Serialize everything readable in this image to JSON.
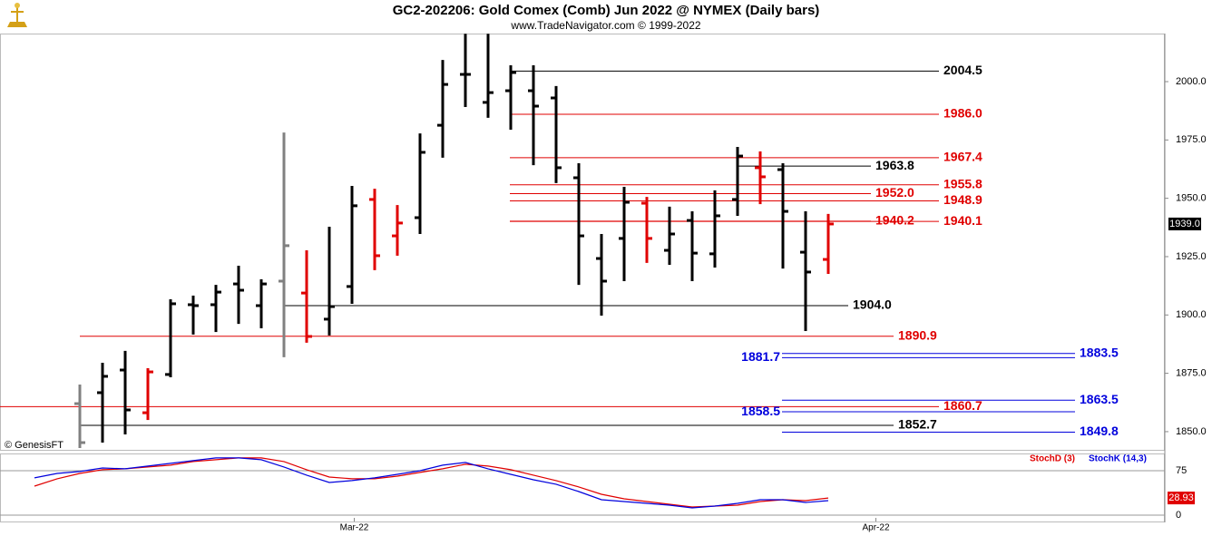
{
  "chart_data": [
    {
      "type": "ohlc",
      "title": "GC2-202206:  Gold Comex (Comb) Jun 2022 @ NYMEX  (Daily bars)",
      "subtitle": "www.TradeNavigator.com © 1999-2022",
      "watermark": "© GenesisFT",
      "x": [
        0,
        1,
        2,
        3,
        4,
        5,
        6,
        7,
        8,
        9,
        10,
        11,
        12,
        13,
        14,
        15,
        16,
        17,
        18,
        19,
        20,
        21,
        22,
        23,
        24,
        25,
        26,
        27,
        28,
        29,
        30,
        31,
        32,
        33
      ],
      "open": [
        1862.0,
        1866.7,
        1876.4,
        1858.1,
        1874.5,
        1904.4,
        1904.4,
        1913.3,
        1904.0,
        1914.5,
        1909.4,
        1898.2,
        1912.2,
        1949.5,
        1933.9,
        1941.7,
        1981.3,
        2003.1,
        1991.1,
        1996.1,
        1996.1,
        1993.0,
        1958.8,
        1924.2,
        1932.8,
        1947.9,
        1927.7,
        1940.5,
        1926.2,
        1949.5,
        1963.1,
        1962.3,
        1926.9,
        1923.8
      ],
      "high": [
        1870.2,
        1879.5,
        1884.6,
        1877.2,
        1906.7,
        1908.3,
        1912.9,
        1921.1,
        1915.3,
        1978.2,
        1927.7,
        1937.8,
        1955.3,
        1954.1,
        1947.1,
        1977.8,
        2009.3,
        2020.5,
        2020.5,
        2007.0,
        2007.0,
        1998.1,
        1965.0,
        1934.7,
        1954.9,
        1950.6,
        1946.4,
        1944.4,
        1953.4,
        1972.0,
        1970.1,
        1965.0,
        1944.4,
        1943.3
      ],
      "low": [
        1843.0,
        1845.3,
        1848.8,
        1855.0,
        1873.3,
        1891.6,
        1892.7,
        1896.2,
        1894.3,
        1881.9,
        1888.1,
        1891.2,
        1904.8,
        1919.2,
        1925.4,
        1934.7,
        1967.4,
        1989.1,
        1984.5,
        1979.4,
        1964.2,
        1956.5,
        1912.9,
        1899.7,
        1914.5,
        1922.3,
        1921.5,
        1914.5,
        1920.3,
        1942.5,
        1947.5,
        1919.9,
        1893.1,
        1917.6
      ],
      "close": [
        1845.3,
        1873.7,
        1859.3,
        1875.6,
        1904.8,
        1904.0,
        1909.8,
        1910.6,
        1913.3,
        1929.7,
        1890.8,
        1903.6,
        1946.8,
        1925.4,
        1939.4,
        1969.7,
        1998.8,
        2003.1,
        1995.3,
        2003.9,
        1989.5,
        1963.1,
        1933.9,
        1914.5,
        1948.3,
        1932.8,
        1934.7,
        1926.5,
        1942.5,
        1968.1,
        1959.2,
        1944.4,
        1918.4,
        1939.0
      ],
      "bar_colors": [
        "#808080",
        "#000000",
        "#000000",
        "#e00000",
        "#000000",
        "#000000",
        "#000000",
        "#000000",
        "#000000",
        "#808080",
        "#e00000",
        "#000000",
        "#000000",
        "#e00000",
        "#e00000",
        "#000000",
        "#000000",
        "#000000",
        "#000000",
        "#000000",
        "#000000",
        "#000000",
        "#000000",
        "#000000",
        "#000000",
        "#e00000",
        "#000000",
        "#000000",
        "#000000",
        "#000000",
        "#e00000",
        "#000000",
        "#000000",
        "#e00000"
      ],
      "last_label": "1939.0",
      "xlim": [
        -3.52,
        47.84
      ],
      "ylim": [
        1842.2,
        2020.6
      ],
      "yticks": [
        {
          "value": 1850,
          "label": "1850.0"
        },
        {
          "value": 1875,
          "label": "1875.0"
        },
        {
          "value": 1900,
          "label": "1900.0"
        },
        {
          "value": 1925,
          "label": "1925.0"
        },
        {
          "value": 1950,
          "label": "1950.0"
        },
        {
          "value": 1975,
          "label": "1975.0"
        },
        {
          "value": 2000,
          "label": "2000.0"
        }
      ],
      "levels": [
        {
          "value": 2004.5,
          "label": "2004.5",
          "color": "#000000"
        },
        {
          "value": 1986.0,
          "label": "1986.0",
          "color": "#e00000"
        },
        {
          "value": 1967.4,
          "label": "1967.4",
          "color": "#e00000"
        },
        {
          "value": 1963.8,
          "label": "1963.8",
          "color": "#000000"
        },
        {
          "value": 1955.8,
          "label": "1955.8",
          "color": "#e00000"
        },
        {
          "value": 1952.0,
          "label": "1952.0",
          "color": "#e00000"
        },
        {
          "value": 1948.9,
          "label": "1948.9",
          "color": "#e00000"
        },
        {
          "value": 1940.2,
          "label": "1940.2",
          "color": "#e00000"
        },
        {
          "value": 1940.1,
          "label": "1940.1",
          "color": "#e00000"
        },
        {
          "value": 1904.0,
          "label": "1904.0",
          "color": "#000000"
        },
        {
          "value": 1890.9,
          "label": "1890.9",
          "color": "#e00000"
        },
        {
          "value": 1883.5,
          "label": "1883.5",
          "color": "#0000dd"
        },
        {
          "value": 1881.7,
          "label": "1881.7",
          "color": "#0000dd"
        },
        {
          "value": 1863.5,
          "label": "1863.5",
          "color": "#0000dd"
        },
        {
          "value": 1860.7,
          "label": "1860.7",
          "color": "#e00000"
        },
        {
          "value": 1858.5,
          "label": "1858.5",
          "color": "#0000dd"
        },
        {
          "value": 1852.7,
          "label": "1852.7",
          "color": "#000000"
        },
        {
          "value": 1849.8,
          "label": "1849.8",
          "color": "#0000dd"
        }
      ]
    },
    {
      "type": "line",
      "x": [
        -2,
        -1,
        0,
        1,
        2,
        3,
        4,
        5,
        6,
        7,
        8,
        9,
        10,
        11,
        12,
        13,
        14,
        15,
        16,
        17,
        18,
        19,
        20,
        21,
        22,
        23,
        24,
        25,
        26,
        27,
        28,
        29,
        30,
        31,
        32,
        33
      ],
      "series": [
        {
          "name": "StochD (3)",
          "color": "#e00000",
          "values": [
            49.0,
            61.3,
            70.4,
            76.6,
            78.1,
            81.2,
            84.2,
            90.4,
            93.4,
            96.5,
            96.5,
            90.4,
            76.6,
            64.3,
            61.3,
            61.3,
            65.8,
            72.0,
            78.1,
            85.8,
            82.7,
            76.6,
            67.4,
            58.2,
            47.5,
            35.2,
            27.6,
            23.0,
            18.4,
            13.8,
            15.3,
            16.8,
            23.0,
            26.0,
            24.5,
            28.93
          ]
        },
        {
          "name": "StochK (14,3)",
          "color": "#0000dd",
          "values": [
            62.8,
            70.4,
            73.5,
            79.6,
            78.1,
            82.7,
            87.3,
            91.9,
            96.5,
            96.5,
            93.4,
            81.2,
            67.4,
            55.1,
            58.2,
            62.8,
            68.9,
            75.0,
            84.2,
            88.8,
            78.1,
            68.9,
            59.7,
            52.1,
            39.8,
            26.0,
            23.0,
            19.9,
            16.8,
            12.3,
            15.3,
            19.9,
            26.0,
            26.0,
            21.4,
            24.5
          ]
        }
      ],
      "xlim": [
        -3.52,
        47.84
      ],
      "xticks": [
        {
          "value": 12.1,
          "label": "Mar-22"
        },
        {
          "value": 35.1,
          "label": "Apr-22"
        }
      ],
      "ylim": [
        -10.7,
        104
      ],
      "yticks": [
        0,
        75
      ]
    }
  ]
}
